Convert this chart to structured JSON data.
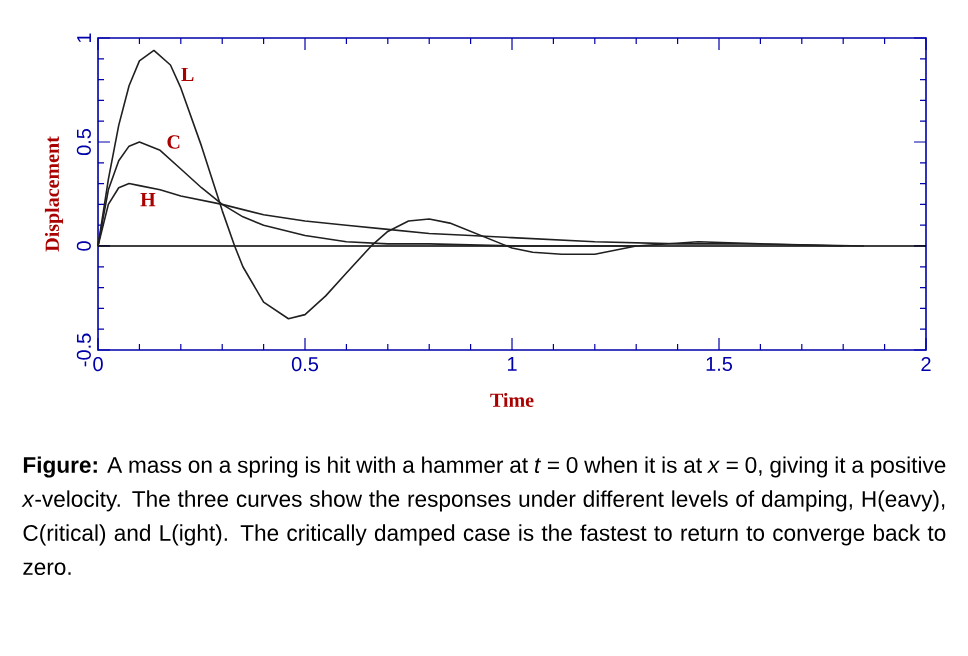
{
  "chart_data": {
    "type": "line",
    "xlabel": "Time",
    "ylabel": "Displacement",
    "xlim": [
      0,
      2
    ],
    "ylim": [
      -0.5,
      1
    ],
    "xticks": [
      0,
      0.5,
      1,
      1.5,
      2
    ],
    "yticks": [
      -0.5,
      0,
      0.5,
      1
    ],
    "grid": false,
    "marker": "none",
    "line_style": "solid",
    "ref_lines": [
      {
        "axis": "y",
        "value": 0,
        "color": "#000000"
      }
    ],
    "annotations": [
      "**Figure:** A mass on a spring is hit with a hammer at *t* = 0 when it is at *x* = 0, giving it a positive *x*-velocity.  The three curves show the responses under different levels of damping, H(eavy), C(ritical) and L(ight).  The critically damped case is the fastest to return to converge back to zero."
    ],
    "series": [
      {
        "name": "L",
        "color": "#202020",
        "x": [
          0,
          0.025,
          0.05,
          0.075,
          0.1,
          0.135,
          0.175,
          0.2,
          0.25,
          0.3,
          0.33,
          0.35,
          0.4,
          0.46,
          0.5,
          0.55,
          0.6,
          0.66,
          0.7,
          0.75,
          0.8,
          0.85,
          0.9,
          0.95,
          1.0,
          1.05,
          1.12,
          1.2,
          1.3,
          1.45,
          1.6,
          1.85
        ],
        "values": [
          0,
          0.32,
          0.58,
          0.77,
          0.89,
          0.94,
          0.87,
          0.76,
          0.48,
          0.17,
          0,
          -0.1,
          -0.27,
          -0.35,
          -0.33,
          -0.24,
          -0.13,
          0,
          0.07,
          0.12,
          0.13,
          0.11,
          0.07,
          0.03,
          -0.01,
          -0.03,
          -0.04,
          -0.04,
          0,
          0.02,
          0.01,
          0
        ]
      },
      {
        "name": "C",
        "color": "#202020",
        "x": [
          0,
          0.025,
          0.05,
          0.075,
          0.1,
          0.15,
          0.2,
          0.25,
          0.3,
          0.35,
          0.4,
          0.5,
          0.6,
          0.7,
          0.8,
          1.0,
          1.3
        ],
        "values": [
          0,
          0.27,
          0.41,
          0.48,
          0.5,
          0.46,
          0.37,
          0.28,
          0.2,
          0.14,
          0.1,
          0.05,
          0.02,
          0.01,
          0.01,
          0,
          0
        ]
      },
      {
        "name": "H",
        "color": "#202020",
        "x": [
          0,
          0.025,
          0.05,
          0.075,
          0.1,
          0.15,
          0.2,
          0.3,
          0.4,
          0.5,
          0.6,
          0.7,
          0.8,
          0.9,
          1.0,
          1.2,
          1.4,
          1.6,
          1.8
        ],
        "values": [
          0,
          0.2,
          0.28,
          0.3,
          0.29,
          0.27,
          0.24,
          0.2,
          0.15,
          0.12,
          0.1,
          0.08,
          0.06,
          0.05,
          0.04,
          0.02,
          0.01,
          0.01,
          0
        ]
      }
    ]
  }
}
